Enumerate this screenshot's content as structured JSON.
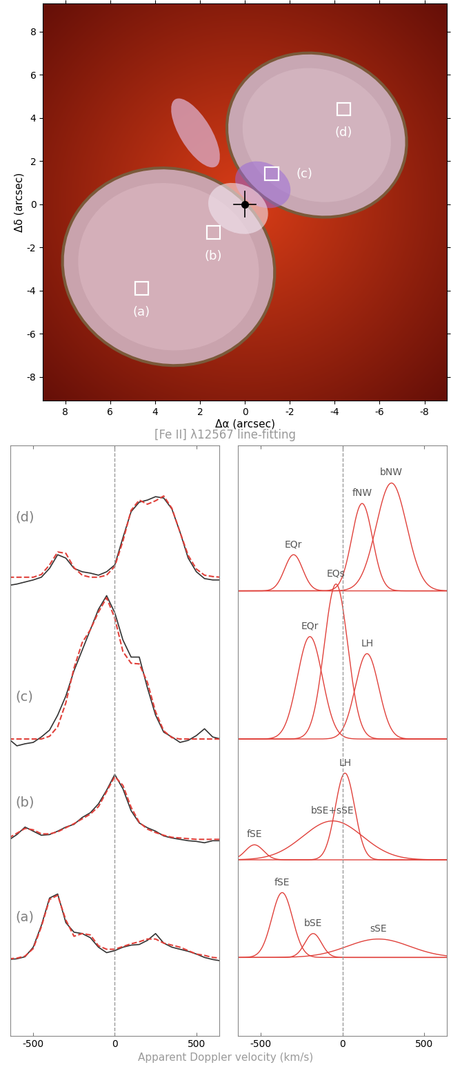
{
  "chart_data": [
    {
      "type": "image",
      "xlabel": "Δα (arcsec)",
      "ylabel": "Δδ (arcsec)",
      "xlim": [
        9,
        -9
      ],
      "ylim": [
        -9.1,
        9.3
      ],
      "xticks": [
        8,
        6,
        4,
        2,
        0,
        -2,
        -4,
        -6,
        -8
      ],
      "yticks": [
        -8,
        -6,
        -4,
        -2,
        0,
        2,
        4,
        6,
        8
      ],
      "star": {
        "x": 0,
        "y": 0
      },
      "regions": [
        {
          "label": "(a)",
          "x": 4.6,
          "y": -3.9
        },
        {
          "label": "(b)",
          "x": 1.4,
          "y": -1.3
        },
        {
          "label": "(c)",
          "x": -1.2,
          "y": 1.4
        },
        {
          "label": "(d)",
          "x": -4.4,
          "y": 4.4
        }
      ]
    },
    {
      "type": "line",
      "title": "[Fe II] λ12567 line-fitting",
      "xlabel": "Apparent Doppler velocity (km/s)",
      "xlim": [
        -640,
        640
      ],
      "ylim": [
        0,
        8.65
      ],
      "xticks": [
        -500,
        0,
        500
      ],
      "tick_labels": "x",
      "vline": 0,
      "x": [
        -650,
        -600,
        -550,
        -500,
        -450,
        -400,
        -350,
        -300,
        -250,
        -200,
        -150,
        -100,
        -50,
        0,
        50,
        100,
        150,
        200,
        250,
        300,
        350,
        400,
        450,
        500,
        550,
        600,
        650
      ],
      "series": [
        {
          "name": "(a)",
          "color": "#333333",
          "line_style": "solid",
          "values": [
            1.12,
            1.13,
            1.16,
            1.3,
            1.62,
            2.02,
            2.08,
            1.66,
            1.52,
            1.5,
            1.44,
            1.3,
            1.22,
            1.25,
            1.3,
            1.33,
            1.34,
            1.4,
            1.5,
            1.36,
            1.3,
            1.27,
            1.24,
            1.2,
            1.15,
            1.12,
            1.1
          ]
        },
        {
          "name": "(b)",
          "color": "#333333",
          "line_style": "solid",
          "values": [
            2.87,
            2.95,
            3.06,
            3.0,
            2.94,
            2.95,
            3.0,
            3.06,
            3.1,
            3.2,
            3.27,
            3.4,
            3.6,
            3.83,
            3.62,
            3.3,
            3.12,
            3.05,
            3.0,
            2.93,
            2.9,
            2.88,
            2.86,
            2.85,
            2.83,
            2.86,
            2.86
          ]
        },
        {
          "name": "(c)",
          "color": "#333333",
          "line_style": "solid",
          "values": [
            4.35,
            4.25,
            4.28,
            4.3,
            4.38,
            4.48,
            4.7,
            4.98,
            5.35,
            5.65,
            5.95,
            6.25,
            6.45,
            6.2,
            5.8,
            5.55,
            5.55,
            5.1,
            4.7,
            4.45,
            4.38,
            4.3,
            4.33,
            4.4,
            4.5,
            4.38,
            4.35
          ]
        },
        {
          "name": "(d)",
          "color": "#333333",
          "line_style": "solid",
          "values": [
            6.6,
            6.62,
            6.65,
            6.68,
            6.72,
            6.85,
            7.05,
            7.0,
            6.85,
            6.8,
            6.78,
            6.75,
            6.8,
            6.9,
            7.3,
            7.68,
            7.82,
            7.85,
            7.9,
            7.88,
            7.72,
            7.38,
            7.0,
            6.8,
            6.7,
            6.68,
            6.68
          ]
        }
      ],
      "fits": [
        {
          "color": "#e0403a",
          "line_style": "dashed",
          "values": [
            1.13,
            1.14,
            1.17,
            1.28,
            1.6,
            2.0,
            2.06,
            1.7,
            1.46,
            1.5,
            1.48,
            1.32,
            1.27,
            1.27,
            1.31,
            1.35,
            1.38,
            1.42,
            1.42,
            1.36,
            1.33,
            1.3,
            1.25,
            1.2,
            1.18,
            1.15,
            1.14
          ]
        },
        {
          "color": "#e0403a",
          "line_style": "dashed",
          "values": [
            2.9,
            2.97,
            3.04,
            3.02,
            2.96,
            2.96,
            2.99,
            3.05,
            3.11,
            3.18,
            3.25,
            3.36,
            3.58,
            3.8,
            3.67,
            3.35,
            3.13,
            3.03,
            2.98,
            2.94,
            2.91,
            2.9,
            2.89,
            2.88,
            2.88,
            2.88,
            2.88
          ]
        },
        {
          "color": "#e0403a",
          "line_style": "dashed",
          "values": [
            4.35,
            4.35,
            4.35,
            4.35,
            4.35,
            4.39,
            4.53,
            4.88,
            5.39,
            5.76,
            5.95,
            6.21,
            6.42,
            6.12,
            5.63,
            5.46,
            5.45,
            5.18,
            4.75,
            4.47,
            4.37,
            4.35,
            4.35,
            4.35,
            4.35,
            4.35,
            4.35
          ]
        },
        {
          "color": "#e0403a",
          "line_style": "dashed",
          "values": [
            6.72,
            6.72,
            6.72,
            6.72,
            6.76,
            6.9,
            7.09,
            7.07,
            6.86,
            6.75,
            6.72,
            6.72,
            6.75,
            6.88,
            7.25,
            7.7,
            7.85,
            7.79,
            7.84,
            7.91,
            7.73,
            7.38,
            7.04,
            6.84,
            6.75,
            6.73,
            6.72
          ]
        }
      ]
    },
    {
      "type": "gaussian_components",
      "xlim": [
        -640,
        640
      ],
      "ylim": [
        0,
        8.65
      ],
      "xticks": [
        -500,
        0,
        500
      ],
      "tick_labels": "x",
      "vline": 0,
      "color": "#e0403a",
      "panels": [
        {
          "baseline": 1.15,
          "components": [
            {
              "name": "fSE",
              "center": -370,
              "fwhm": 150,
              "peak": 0.95
            },
            {
              "name": "bSE",
              "center": -180,
              "fwhm": 120,
              "peak": 0.35
            },
            {
              "name": "sSE",
              "center": 220,
              "fwhm": 450,
              "peak": 0.27
            }
          ]
        },
        {
          "baseline": 2.58,
          "components": [
            {
              "name": "fSE",
              "center": -540,
              "fwhm": 130,
              "peak": 0.22
            },
            {
              "name": "bSE+sSE",
              "center": -60,
              "fwhm": 430,
              "peak": 0.57
            },
            {
              "name": "LH",
              "center": 15,
              "fwhm": 140,
              "peak": 1.27
            }
          ]
        },
        {
          "baseline": 4.35,
          "components": [
            {
              "name": "EQr",
              "center": -200,
              "fwhm": 180,
              "peak": 1.5
            },
            {
              "name": "EQs",
              "center": -40,
              "fwhm": 170,
              "peak": 2.27
            },
            {
              "name": "LH",
              "center": 150,
              "fwhm": 170,
              "peak": 1.25
            }
          ]
        },
        {
          "baseline": 6.52,
          "components": [
            {
              "name": "EQr",
              "center": -300,
              "fwhm": 130,
              "peak": 0.53
            },
            {
              "name": "fNW",
              "center": 120,
              "fwhm": 150,
              "peak": 1.28
            },
            {
              "name": "bNW",
              "center": 300,
              "fwhm": 220,
              "peak": 1.58
            }
          ]
        }
      ]
    }
  ]
}
